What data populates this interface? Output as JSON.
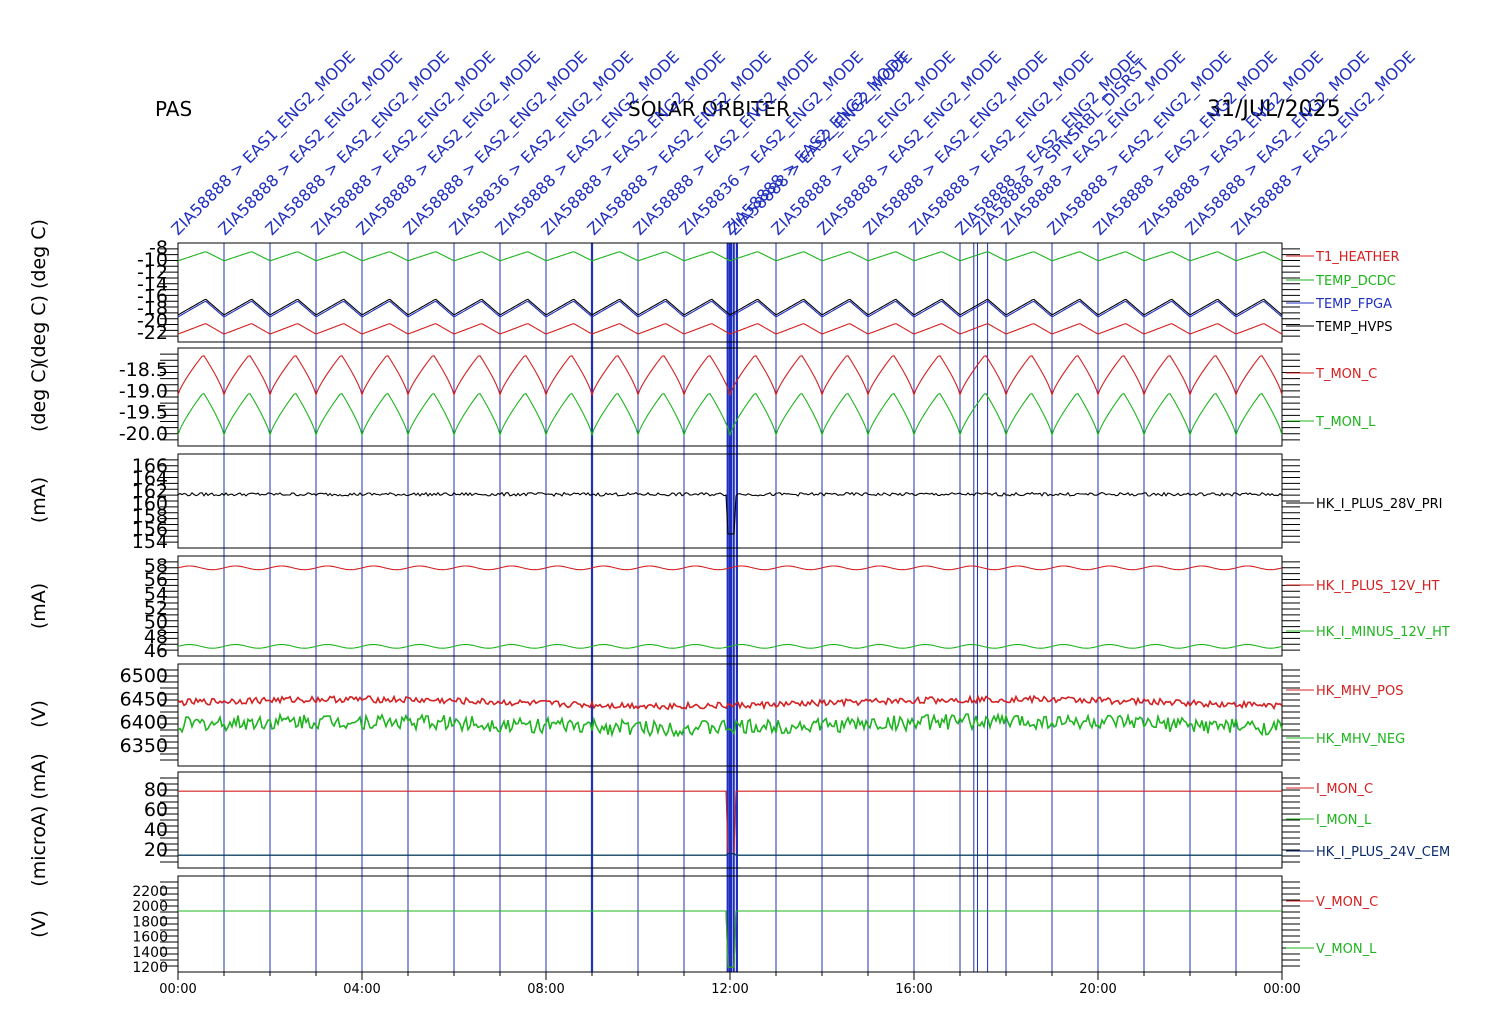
{
  "header": {
    "left": "PAS",
    "center": "SOLAR ORBITER",
    "right": "31/JUL/2025"
  },
  "colors": {
    "red": "#d42020",
    "green": "#1eb41e",
    "blue": "#1f2fbf",
    "black": "#000000",
    "navy": "#0a2a6e"
  },
  "x_ticks": [
    "00:00",
    "04:00",
    "08:00",
    "12:00",
    "16:00",
    "20:00",
    "00:00"
  ],
  "event_labels": [
    "ZIA58888 > EAS1_ENG2_MODE",
    "ZIA58888 > EAS2_ENG2_MODE",
    "ZIA58888 > EAS2_ENG2_MODE",
    "ZIA58888 > EAS2_ENG2_MODE",
    "ZIA58888 > EAS2_ENG2_MODE",
    "ZIA58888 > EAS2_ENG2_MODE",
    "ZIA58836 > EAS2_ENG2_MODE",
    "ZIA58888 > EAS2_ENG2_MODE",
    "ZIA58888 > EAS2_ENG2_MODE",
    "ZIA58888 > EAS2_ENG2_MODE",
    "ZIA58888 > EAS2_ENG2_MODE",
    "ZIA58836 > EAS2_ENG2_MODE",
    "ZIA58888 > EAS2_ENG2_MODE",
    "ZIA58888 > EAS2_ENG2_MODE",
    "ZIA58888 > EAS2_ENG2_MODE",
    "ZIA58888 > EAS2_ENG2_MODE",
    "ZIA58888 > EAS2_ENG2_MODE",
    "ZIA58888 > EAS2_ENG2_MODE",
    "ZIA58888 > EAS2_ENG2_MODE",
    "ZIA58888 > EAS2_ENG2_MODE",
    "ZIA58888 > EAS2_ENG2_MODE",
    "ZIA58888 > EAS2_ENG2_MODE",
    "ZIA58888 > EAS2_ENG2_MODE",
    "ZIA58888 > EAS2_ENG2_MODE",
    "ZIA58888 > EAS2_ENG2_MODE",
    "ZIA58888 > SPNSRBL_DISRST"
  ],
  "chart_data": [
    {
      "type": "line",
      "ylabel": "(deg C) (deg C)",
      "yticks": [
        "-8",
        "-10",
        "-12",
        "-14",
        "-16",
        "-18",
        "-20",
        "-22"
      ],
      "ylim": [
        -22.5,
        -7.5
      ],
      "x": "00:00-00:00, 31/JUL/2025",
      "series": [
        {
          "name": "T1_HEATHER",
          "color": "#d42020",
          "mean": -20.5,
          "amplitude": 0.8,
          "period_h": 1.0
        },
        {
          "name": "TEMP_DCDC",
          "color": "#1eb41e",
          "mean": -9.5,
          "amplitude": 0.7,
          "period_h": 1.0
        },
        {
          "name": "TEMP_FPGA",
          "color": "#1f2fbf",
          "mean": -17.5,
          "amplitude": 1.2,
          "period_h": 1.0
        },
        {
          "name": "TEMP_HVPS",
          "color": "#000000",
          "mean": -17.2,
          "amplitude": 1.2,
          "period_h": 1.0
        }
      ]
    },
    {
      "type": "line",
      "ylabel": "(deg C)",
      "yticks": [
        "-18.5",
        "-19.0",
        "-19.5",
        "-20.0"
      ],
      "ylim": [
        -20.3,
        -18.1
      ],
      "series": [
        {
          "name": "T_MON_C",
          "color": "#d42020",
          "min": -19.15,
          "max": -18.25,
          "period_h": 1.0
        },
        {
          "name": "T_MON_L",
          "color": "#1eb41e",
          "min": -20.05,
          "max": -19.1,
          "period_h": 1.0
        }
      ]
    },
    {
      "type": "line",
      "ylabel": "(mA)",
      "yticks": [
        "166",
        "164",
        "162",
        "160",
        "158",
        "156",
        "154"
      ],
      "ylim": [
        153,
        167
      ],
      "series": [
        {
          "name": "HK_I_PLUS_28V_PRI",
          "color": "#000000",
          "mean": 161.0
        }
      ]
    },
    {
      "type": "line",
      "ylabel": "(mA)",
      "yticks": [
        "58",
        "56",
        "54",
        "52",
        "50",
        "48",
        "46"
      ],
      "ylim": [
        45.5,
        59
      ],
      "series": [
        {
          "name": "HK_I_PLUS_12V_HT",
          "color": "#d42020",
          "mean": 57.4
        },
        {
          "name": "HK_I_MINUS_12V_HT",
          "color": "#1eb41e",
          "mean": 46.8
        }
      ]
    },
    {
      "type": "line",
      "ylabel": "(V)",
      "yticks": [
        "6500",
        "6450",
        "6400",
        "6350"
      ],
      "ylim": [
        6325,
        6510
      ],
      "series": [
        {
          "name": "HK_MHV_POS",
          "color": "#d42020",
          "mean": 6440
        },
        {
          "name": "HK_MHV_NEG",
          "color": "#1eb41e",
          "mean": 6400
        }
      ]
    },
    {
      "type": "line",
      "ylabel": "(microA) (mA)",
      "yticks": [
        "80",
        "60",
        "40",
        "20"
      ],
      "ylim": [
        5,
        95
      ],
      "series": [
        {
          "name": "I_MON_C",
          "color": "#d42020",
          "mean": 77
        },
        {
          "name": "I_MON_L",
          "color": "#1eb41e",
          "mean": 17
        },
        {
          "name": "HK_I_PLUS_24V_CEM",
          "color": "#0a2a6e",
          "mean": 17
        }
      ]
    },
    {
      "type": "line",
      "ylabel": "(V)",
      "yticks": [
        "2200",
        "2000",
        "1800",
        "1600",
        "1400",
        "1200"
      ],
      "ylim": [
        1150,
        2330
      ],
      "series": [
        {
          "name": "V_MON_C",
          "color": "#d42020",
          "mean": 1900
        },
        {
          "name": "V_MON_L",
          "color": "#1eb41e",
          "mean": 1900
        }
      ]
    }
  ]
}
